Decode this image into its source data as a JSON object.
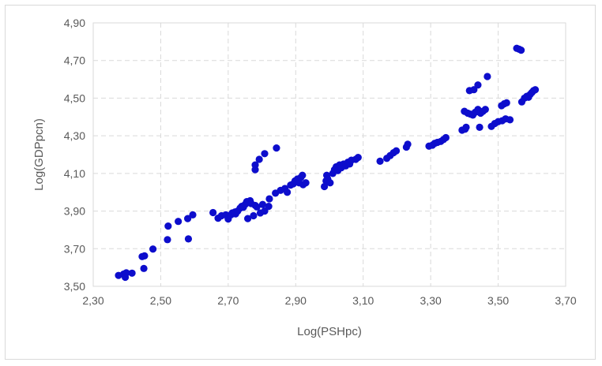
{
  "chart_data": {
    "type": "scatter",
    "title": "",
    "xlabel": "Log(PSHpc)",
    "ylabel": "Log(GDPpcn)",
    "xlim": [
      2.3,
      3.7
    ],
    "ylim": [
      3.5,
      4.9
    ],
    "x_ticks": [
      "2,30",
      "2,50",
      "2,70",
      "2,90",
      "3,10",
      "3,30",
      "3,50",
      "3,70"
    ],
    "y_ticks": [
      "3,50",
      "3,70",
      "3,90",
      "4,10",
      "4,30",
      "4,50",
      "4,70",
      "4,90"
    ],
    "grid": "dashed",
    "legend": "none",
    "marker_color": "#0d0dcc",
    "points": [
      [
        2.375,
        3.558
      ],
      [
        2.39,
        3.565
      ],
      [
        2.395,
        3.548
      ],
      [
        2.398,
        3.572
      ],
      [
        2.415,
        3.57
      ],
      [
        2.445,
        3.658
      ],
      [
        2.452,
        3.662
      ],
      [
        2.45,
        3.595
      ],
      [
        2.477,
        3.698
      ],
      [
        2.52,
        3.748
      ],
      [
        2.522,
        3.82
      ],
      [
        2.552,
        3.845
      ],
      [
        2.58,
        3.86
      ],
      [
        2.582,
        3.752
      ],
      [
        2.595,
        3.88
      ],
      [
        2.655,
        3.892
      ],
      [
        2.67,
        3.862
      ],
      [
        2.68,
        3.875
      ],
      [
        2.693,
        3.88
      ],
      [
        2.7,
        3.858
      ],
      [
        2.708,
        3.88
      ],
      [
        2.712,
        3.89
      ],
      [
        2.72,
        3.895
      ],
      [
        2.722,
        3.885
      ],
      [
        2.728,
        3.9
      ],
      [
        2.735,
        3.915
      ],
      [
        2.74,
        3.925
      ],
      [
        2.745,
        3.92
      ],
      [
        2.75,
        3.935
      ],
      [
        2.755,
        3.95
      ],
      [
        2.76,
        3.945
      ],
      [
        2.765,
        3.955
      ],
      [
        2.768,
        3.94
      ],
      [
        2.758,
        3.86
      ],
      [
        2.775,
        3.875
      ],
      [
        2.78,
        3.93
      ],
      [
        2.785,
        3.922
      ],
      [
        2.795,
        3.89
      ],
      [
        2.802,
        3.935
      ],
      [
        2.808,
        3.9
      ],
      [
        2.82,
        3.925
      ],
      [
        2.822,
        3.965
      ],
      [
        2.84,
        3.995
      ],
      [
        2.855,
        4.01
      ],
      [
        2.868,
        4.02
      ],
      [
        2.875,
        4.0
      ],
      [
        2.885,
        4.038
      ],
      [
        2.893,
        4.045
      ],
      [
        2.898,
        4.06
      ],
      [
        2.905,
        4.07
      ],
      [
        2.91,
        4.05
      ],
      [
        2.915,
        4.078
      ],
      [
        2.92,
        4.09
      ],
      [
        2.922,
        4.04
      ],
      [
        2.93,
        4.05
      ],
      [
        2.78,
        4.12
      ],
      [
        2.78,
        4.145
      ],
      [
        2.792,
        4.175
      ],
      [
        2.808,
        4.205
      ],
      [
        2.843,
        4.235
      ],
      [
        2.985,
        4.03
      ],
      [
        2.99,
        4.06
      ],
      [
        2.992,
        4.09
      ],
      [
        2.995,
        4.07
      ],
      [
        3.002,
        4.05
      ],
      [
        3.01,
        4.1
      ],
      [
        3.015,
        4.12
      ],
      [
        3.02,
        4.135
      ],
      [
        3.025,
        4.115
      ],
      [
        3.03,
        4.145
      ],
      [
        3.035,
        4.13
      ],
      [
        3.042,
        4.15
      ],
      [
        3.048,
        4.14
      ],
      [
        3.055,
        4.16
      ],
      [
        3.06,
        4.15
      ],
      [
        3.065,
        4.17
      ],
      [
        3.078,
        4.175
      ],
      [
        3.085,
        4.185
      ],
      [
        3.15,
        4.165
      ],
      [
        3.17,
        4.18
      ],
      [
        3.18,
        4.195
      ],
      [
        3.19,
        4.21
      ],
      [
        3.198,
        4.22
      ],
      [
        3.228,
        4.24
      ],
      [
        3.232,
        4.255
      ],
      [
        3.295,
        4.245
      ],
      [
        3.305,
        4.25
      ],
      [
        3.312,
        4.26
      ],
      [
        3.32,
        4.265
      ],
      [
        3.33,
        4.27
      ],
      [
        3.338,
        4.28
      ],
      [
        3.345,
        4.29
      ],
      [
        3.393,
        4.33
      ],
      [
        3.402,
        4.335
      ],
      [
        3.405,
        4.345
      ],
      [
        3.4,
        4.43
      ],
      [
        3.41,
        4.42
      ],
      [
        3.418,
        4.415
      ],
      [
        3.425,
        4.41
      ],
      [
        3.432,
        4.425
      ],
      [
        3.44,
        4.44
      ],
      [
        3.448,
        4.42
      ],
      [
        3.455,
        4.43
      ],
      [
        3.462,
        4.44
      ],
      [
        3.445,
        4.345
      ],
      [
        3.415,
        4.54
      ],
      [
        3.428,
        4.545
      ],
      [
        3.44,
        4.57
      ],
      [
        3.468,
        4.615
      ],
      [
        3.48,
        4.35
      ],
      [
        3.49,
        4.365
      ],
      [
        3.5,
        4.375
      ],
      [
        3.512,
        4.38
      ],
      [
        3.522,
        4.39
      ],
      [
        3.535,
        4.385
      ],
      [
        3.51,
        4.46
      ],
      [
        3.518,
        4.47
      ],
      [
        3.525,
        4.475
      ],
      [
        3.555,
        4.765
      ],
      [
        3.562,
        4.76
      ],
      [
        3.568,
        4.755
      ],
      [
        3.57,
        4.48
      ],
      [
        3.578,
        4.5
      ],
      [
        3.585,
        4.51
      ],
      [
        3.59,
        4.505
      ],
      [
        3.595,
        4.52
      ],
      [
        3.6,
        4.53
      ],
      [
        3.605,
        4.54
      ],
      [
        3.61,
        4.545
      ]
    ]
  }
}
